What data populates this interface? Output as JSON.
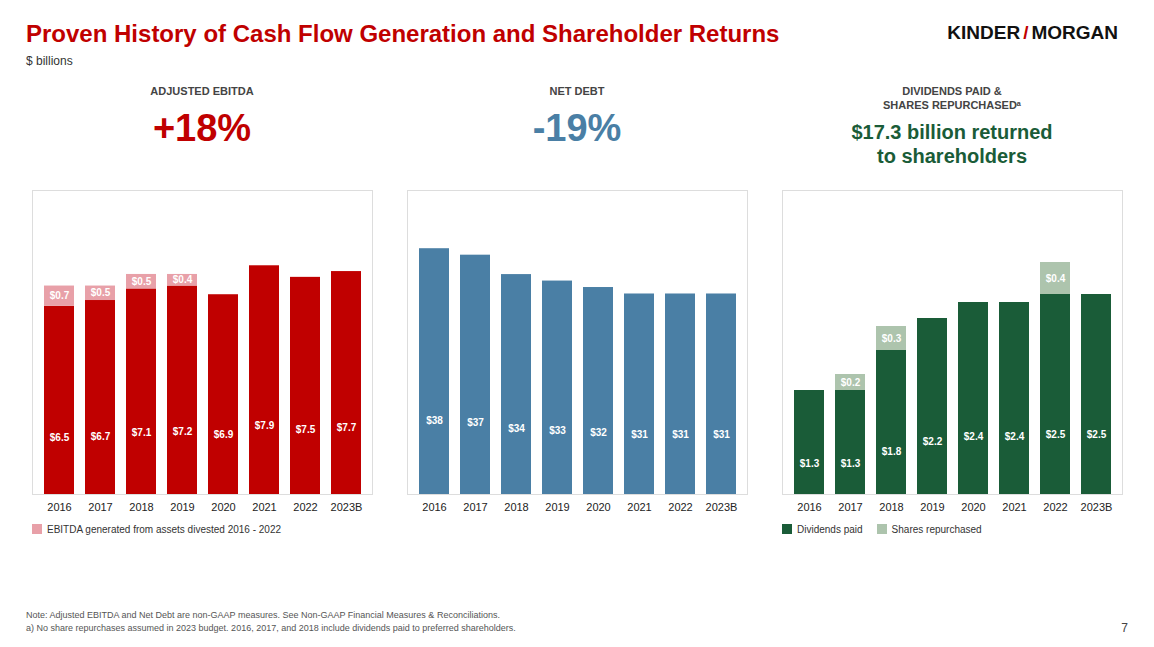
{
  "title": "Proven History of Cash Flow Generation and Shareholder Returns",
  "subtitle": "$ billions",
  "annotations": [
    "KINDER",
    "/",
    "MORGAN",
    "Note: Adjusted EBITDA and Net Debt are non-GAAP measures. See Non-GAAP Financial Measures & Reconciliations.",
    "a)  No share repurchases assumed in 2023 budget. 2016, 2017, and 2018 include dividends paid to preferred shareholders.",
    "7"
  ],
  "chart_data": [
    {
      "type": "bar",
      "title": "ADJUSTED EBITDA",
      "annotations": [
        "+18%"
      ],
      "categories": [
        "2016",
        "2017",
        "2018",
        "2019",
        "2020",
        "2021",
        "2022",
        "2023B"
      ],
      "series": [
        {
          "color": "#c00000",
          "values": [
            6.5,
            6.7,
            7.1,
            7.2,
            6.9,
            7.9,
            7.5,
            7.7
          ],
          "value_labels": [
            "$6.5",
            "$6.7",
            "$7.1",
            "$7.2",
            "$6.9",
            "$7.9",
            "$7.5",
            "$7.7"
          ]
        },
        {
          "name": "EBITDA generated from assets divested 2016 - 2022",
          "color": "#e8a0a8",
          "values": [
            0.7,
            0.5,
            0.5,
            0.4,
            0.0,
            0.0,
            0.0,
            0.0
          ],
          "value_labels": [
            "$0.7",
            "$0.5",
            "$0.5",
            "$0.4",
            null,
            null,
            null,
            null
          ]
        }
      ],
      "stacked": true,
      "ylim": [
        0,
        10.5
      ],
      "data_labels": true,
      "tick_labels": "x",
      "grid": false,
      "legend": "lower left"
    },
    {
      "type": "bar",
      "title": "NET DEBT",
      "annotations": [
        "-19%"
      ],
      "categories": [
        "2016",
        "2017",
        "2018",
        "2019",
        "2020",
        "2021",
        "2022",
        "2023B"
      ],
      "values": [
        38,
        37,
        34,
        33,
        32,
        31,
        31,
        31
      ],
      "value_labels": [
        "$38",
        "$37",
        "$34",
        "$33",
        "$32",
        "$31",
        "$31",
        "$31"
      ],
      "color": "#4a7fa5",
      "ylim": [
        0,
        47
      ],
      "data_labels": true,
      "tick_labels": "x",
      "grid": false
    },
    {
      "type": "bar",
      "title": "DIVIDENDS PAID &\nSHARES REPURCHASEDᵃ",
      "annotations": [
        "$17.3 billion returned",
        "to shareholders"
      ],
      "categories": [
        "2016",
        "2017",
        "2018",
        "2019",
        "2020",
        "2021",
        "2022",
        "2023B"
      ],
      "series": [
        {
          "name": "Dividends paid",
          "color": "#1a5c38",
          "values": [
            1.3,
            1.3,
            1.8,
            2.2,
            2.4,
            2.4,
            2.5,
            2.5
          ],
          "value_labels": [
            "$1.3",
            "$1.3",
            "$1.8",
            "$2.2",
            "$2.4",
            "$2.4",
            "$2.5",
            "$2.5"
          ]
        },
        {
          "name": "Shares repurchased",
          "color": "#adc4ad",
          "values": [
            0.0,
            0.2,
            0.3,
            0.0,
            0.0,
            0.0,
            0.4,
            0.0
          ],
          "value_labels": [
            null,
            "$0.2",
            "$0.3",
            null,
            null,
            null,
            "$0.4",
            null
          ]
        }
      ],
      "stacked": true,
      "ylim": [
        0,
        3.8
      ],
      "data_labels": true,
      "tick_labels": "x",
      "grid": false,
      "legend": "lower left"
    }
  ]
}
